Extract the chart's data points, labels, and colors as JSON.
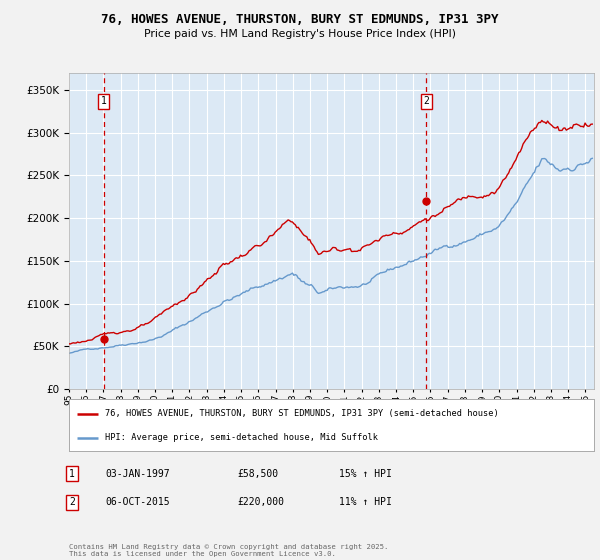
{
  "title": "76, HOWES AVENUE, THURSTON, BURY ST EDMUNDS, IP31 3PY",
  "subtitle": "Price paid vs. HM Land Registry's House Price Index (HPI)",
  "legend_line1": "76, HOWES AVENUE, THURSTON, BURY ST EDMUNDS, IP31 3PY (semi-detached house)",
  "legend_line2": "HPI: Average price, semi-detached house, Mid Suffolk",
  "annotation1_label": "1",
  "annotation1_date": "03-JAN-1997",
  "annotation1_price": "£58,500",
  "annotation1_hpi": "15% ↑ HPI",
  "annotation2_label": "2",
  "annotation2_date": "06-OCT-2015",
  "annotation2_price": "£220,000",
  "annotation2_hpi": "11% ↑ HPI",
  "footer": "Contains HM Land Registry data © Crown copyright and database right 2025.\nThis data is licensed under the Open Government Licence v3.0.",
  "red_color": "#cc0000",
  "blue_color": "#6699cc",
  "plot_bg_color": "#dce9f5",
  "fig_bg_color": "#f2f2f2",
  "vline_color": "#cc0000",
  "grid_color": "#ffffff",
  "ylim": [
    0,
    370000
  ],
  "purchase1_year": 1997.01,
  "purchase1_price": 58500,
  "purchase2_year": 2015.76,
  "purchase2_price": 220000,
  "xlim_start": 1995.0,
  "xlim_end": 2025.5
}
